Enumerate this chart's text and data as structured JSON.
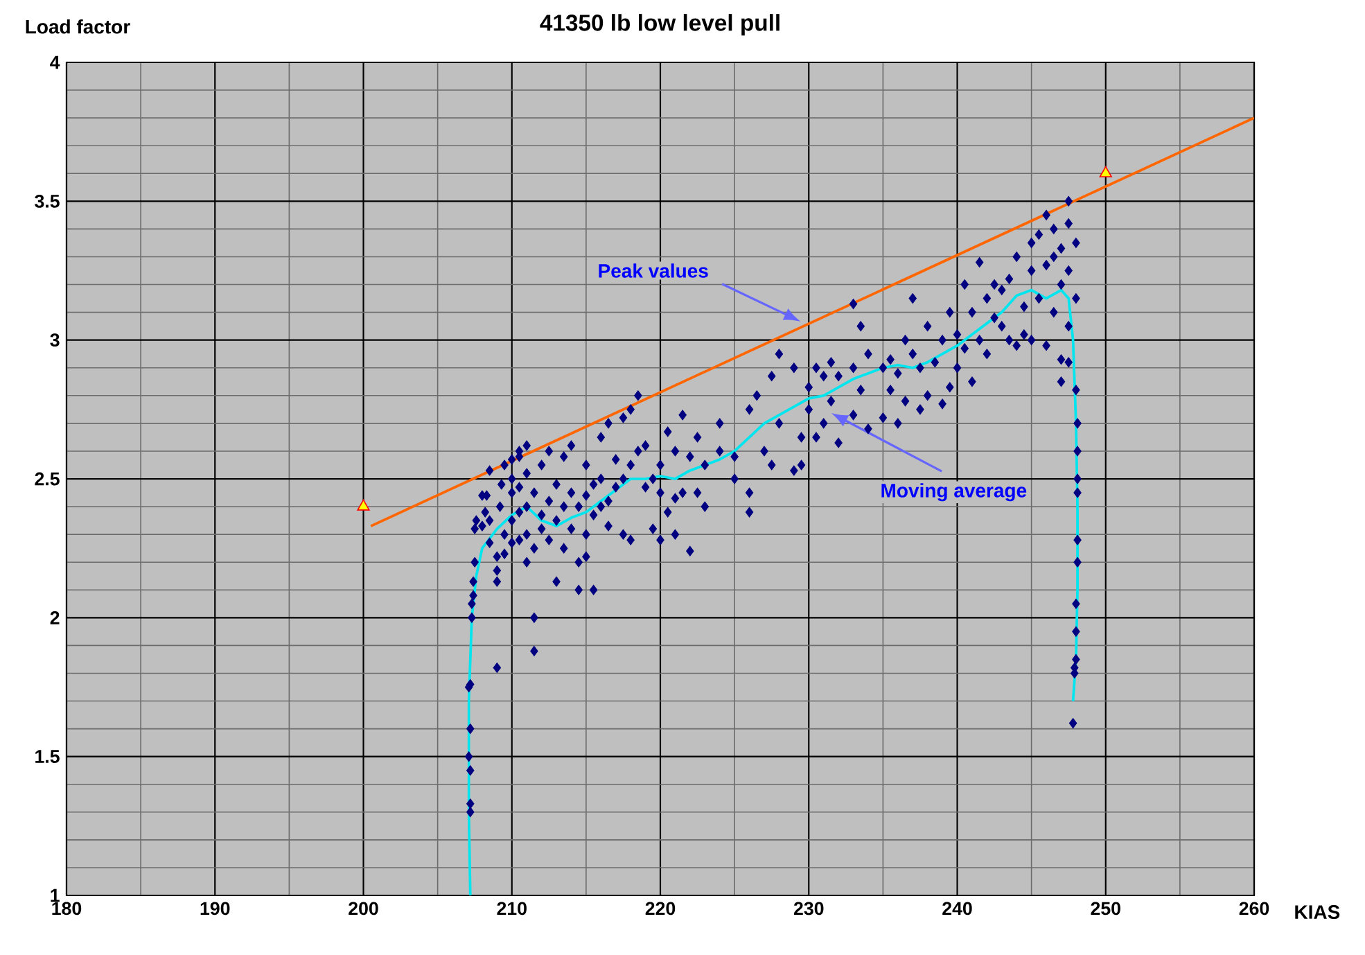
{
  "chart_data": {
    "type": "scatter",
    "title": "41350 lb low level pull",
    "xlabel": "KIAS",
    "ylabel": "Load factor",
    "xlim": [
      180,
      260
    ],
    "ylim": [
      1,
      4
    ],
    "xticks": [
      180,
      {
        "value": 185,
        "label": null
      },
      190,
      {
        "value": 195,
        "label": null
      },
      200,
      {
        "value": 205,
        "label": null
      },
      210,
      {
        "value": 215,
        "label": null
      },
      220,
      {
        "value": 225,
        "label": null
      },
      230,
      {
        "value": 235,
        "label": null
      },
      240,
      {
        "value": 245,
        "label": null
      },
      250,
      {
        "value": 255,
        "label": null
      },
      260
    ],
    "yticks": [
      1,
      {
        "value": 1.1,
        "label": null
      },
      {
        "value": 1.2,
        "label": null
      },
      {
        "value": 1.3,
        "label": null
      },
      {
        "value": 1.4,
        "label": null
      },
      1.5,
      {
        "value": 1.6,
        "label": null
      },
      {
        "value": 1.7,
        "label": null
      },
      {
        "value": 1.8,
        "label": null
      },
      {
        "value": 1.9,
        "label": null
      },
      2,
      {
        "value": 2.1,
        "label": null
      },
      {
        "value": 2.2,
        "label": null
      },
      {
        "value": 2.3,
        "label": null
      },
      {
        "value": 2.4,
        "label": null
      },
      2.5,
      {
        "value": 2.6,
        "label": null
      },
      {
        "value": 2.7,
        "label": null
      },
      {
        "value": 2.8,
        "label": null
      },
      {
        "value": 2.9,
        "label": null
      },
      3,
      {
        "value": 3.1,
        "label": null
      },
      {
        "value": 3.2,
        "label": null
      },
      {
        "value": 3.3,
        "label": null
      },
      {
        "value": 3.4,
        "label": null
      },
      3.5,
      {
        "value": 3.6,
        "label": null
      },
      {
        "value": 3.7,
        "label": null
      },
      {
        "value": 3.8,
        "label": null
      },
      {
        "value": 3.9,
        "label": null
      },
      4
    ],
    "grid": true,
    "series": [
      {
        "marker": "diamond",
        "color": "#000080",
        "x": [
          207.2,
          207.2,
          207.2,
          207.1,
          207.2,
          207.1,
          207.2,
          207.3,
          207.3,
          207.4,
          207.4,
          207.5,
          207.5,
          207.6,
          208,
          208,
          208.2,
          208.3,
          208.5,
          208.5,
          208.5,
          209,
          209,
          209,
          209,
          209.2,
          209.3,
          209.5,
          209.5,
          209.5,
          210,
          210,
          210,
          210,
          210,
          210.5,
          210.5,
          210.5,
          210.5,
          210.5,
          211,
          211,
          211,
          211,
          211,
          211.5,
          211.5,
          211.5,
          211.5,
          212,
          212,
          212,
          212.5,
          212.5,
          212.5,
          213,
          213,
          213,
          213.5,
          213.5,
          213.5,
          214,
          214,
          214,
          214.5,
          214.5,
          214.5,
          215,
          215,
          215,
          215,
          215.5,
          215.5,
          215.5,
          216,
          216,
          216,
          216.5,
          216.5,
          216.5,
          217,
          217,
          217.5,
          217.5,
          217.5,
          218,
          218,
          218,
          218.5,
          218.5,
          219,
          219,
          219.5,
          219.5,
          220,
          220,
          220,
          220.5,
          220.5,
          221,
          221,
          221,
          221.5,
          221.5,
          222,
          222,
          222.5,
          222.5,
          223,
          223,
          224,
          224,
          225,
          225,
          226,
          226,
          226,
          226.5,
          227,
          227.5,
          227.5,
          228,
          228,
          229,
          229,
          229.5,
          229.5,
          230,
          230,
          230.5,
          230.5,
          231,
          231,
          231.5,
          231.5,
          232,
          232,
          233,
          233,
          233,
          233.5,
          233.5,
          234,
          234,
          235,
          235,
          235.5,
          235.5,
          236,
          236,
          236.5,
          236.5,
          237,
          237,
          237.5,
          237.5,
          238,
          238,
          238.5,
          239,
          239,
          239.5,
          239.5,
          240,
          240,
          240.5,
          240.5,
          241,
          241,
          241.5,
          241.5,
          242,
          242,
          242.5,
          242.5,
          243,
          243,
          243.5,
          243.5,
          244,
          244,
          244.5,
          244.5,
          245,
          245,
          245,
          245.5,
          245.5,
          246,
          246,
          246,
          246.5,
          246.5,
          246.5,
          247,
          247,
          247,
          247,
          247.5,
          247.5,
          247.5,
          247.5,
          247.5,
          248,
          248,
          248,
          248.1,
          248.1,
          248.1,
          248.1,
          248.1,
          248.1,
          248,
          248,
          248,
          247.9,
          247.9,
          247.8
        ],
        "values": [
          1.3,
          1.33,
          1.45,
          1.5,
          1.6,
          1.75,
          1.76,
          2.0,
          2.05,
          2.08,
          2.13,
          2.2,
          2.32,
          2.35,
          2.44,
          2.33,
          2.38,
          2.44,
          2.53,
          2.35,
          2.27,
          2.13,
          2.22,
          2.17,
          1.82,
          2.4,
          2.48,
          2.55,
          2.3,
          2.23,
          2.57,
          2.45,
          2.35,
          2.5,
          2.27,
          2.58,
          2.6,
          2.47,
          2.38,
          2.28,
          2.62,
          2.52,
          2.4,
          2.3,
          2.2,
          2.45,
          2.25,
          2.0,
          1.88,
          2.55,
          2.37,
          2.32,
          2.6,
          2.42,
          2.28,
          2.48,
          2.35,
          2.13,
          2.58,
          2.4,
          2.25,
          2.62,
          2.45,
          2.32,
          2.4,
          2.2,
          2.1,
          2.55,
          2.44,
          2.3,
          2.22,
          2.48,
          2.37,
          2.1,
          2.65,
          2.5,
          2.4,
          2.7,
          2.42,
          2.33,
          2.57,
          2.47,
          2.72,
          2.5,
          2.3,
          2.75,
          2.55,
          2.28,
          2.8,
          2.6,
          2.62,
          2.47,
          2.5,
          2.32,
          2.55,
          2.45,
          2.28,
          2.67,
          2.38,
          2.6,
          2.43,
          2.3,
          2.73,
          2.45,
          2.58,
          2.24,
          2.65,
          2.45,
          2.55,
          2.4,
          2.7,
          2.6,
          2.58,
          2.5,
          2.75,
          2.45,
          2.38,
          2.8,
          2.6,
          2.87,
          2.55,
          2.95,
          2.7,
          2.9,
          2.53,
          2.55,
          2.65,
          2.83,
          2.75,
          2.9,
          2.65,
          2.87,
          2.7,
          2.92,
          2.78,
          2.87,
          2.63,
          3.13,
          2.9,
          2.73,
          3.05,
          2.82,
          2.95,
          2.68,
          2.9,
          2.72,
          2.93,
          2.82,
          2.88,
          2.7,
          3.0,
          2.78,
          3.15,
          2.95,
          2.9,
          2.75,
          3.05,
          2.8,
          2.92,
          3.0,
          2.77,
          3.1,
          2.83,
          3.02,
          2.9,
          3.2,
          2.97,
          3.1,
          2.85,
          3.28,
          3.0,
          3.15,
          2.95,
          3.2,
          3.08,
          3.18,
          3.05,
          3.22,
          3.0,
          3.3,
          2.98,
          3.12,
          3.02,
          3.25,
          3.35,
          3.0,
          3.38,
          3.15,
          3.45,
          3.27,
          2.98,
          3.4,
          3.3,
          3.1,
          3.33,
          3.2,
          2.93,
          2.85,
          3.5,
          3.42,
          3.25,
          3.05,
          2.92,
          3.35,
          3.15,
          2.82,
          2.7,
          2.6,
          2.5,
          2.45,
          2.28,
          2.2,
          2.05,
          1.95,
          1.85,
          1.82,
          1.8,
          1.62
        ]
      },
      {
        "type": "line",
        "marker": "none",
        "color": "#00e5ee",
        "x": [
          207.2,
          207.1,
          207.1,
          207.3,
          207.6,
          208,
          209,
          210,
          211,
          212,
          213,
          214,
          215,
          216,
          217,
          218,
          219,
          220,
          221,
          222,
          223,
          224,
          225,
          226,
          227,
          228,
          229,
          230,
          231,
          232,
          233,
          234,
          235,
          236,
          237,
          238,
          239,
          240,
          241,
          242,
          243,
          244,
          245,
          246,
          247,
          247.5,
          247.8,
          248,
          248.1,
          248.1,
          248,
          247.8
        ],
        "values": [
          1,
          1.3,
          1.7,
          2.0,
          2.15,
          2.25,
          2.32,
          2.37,
          2.4,
          2.35,
          2.33,
          2.36,
          2.38,
          2.42,
          2.46,
          2.5,
          2.5,
          2.51,
          2.5,
          2.53,
          2.55,
          2.57,
          2.6,
          2.65,
          2.7,
          2.73,
          2.76,
          2.79,
          2.8,
          2.83,
          2.86,
          2.88,
          2.9,
          2.91,
          2.9,
          2.92,
          2.95,
          2.98,
          3.02,
          3.06,
          3.1,
          3.16,
          3.18,
          3.15,
          3.18,
          3.15,
          3.0,
          2.7,
          2.4,
          2.1,
          1.85,
          1.7
        ]
      },
      {
        "type": "line",
        "marker": "none",
        "color": "#ff6600",
        "x": [
          200.5,
          260
        ],
        "values": [
          2.33,
          3.8
        ]
      },
      {
        "type": "scatter",
        "marker": "triangle",
        "color": "#ffff00",
        "x": [
          200,
          250
        ],
        "values": [
          2.4,
          3.6
        ]
      }
    ],
    "annotations": [
      "Peak values",
      "Moving average"
    ]
  }
}
